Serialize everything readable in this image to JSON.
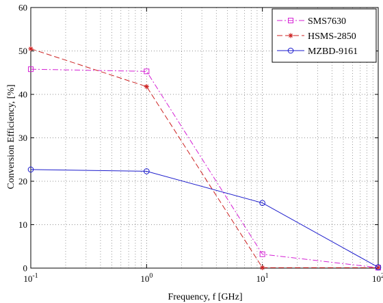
{
  "chart_data": {
    "type": "line",
    "title": "",
    "xlabel": "Frequency, f [GHz]",
    "ylabel": "Conversion Efficiency, [%]",
    "x_scale": "log",
    "xlim": [
      0.1,
      100
    ],
    "ylim": [
      0,
      60
    ],
    "x_ticks": [
      0.1,
      1,
      10,
      100
    ],
    "x_tick_labels": [
      {
        "base": "10",
        "exp": "-1"
      },
      {
        "base": "10",
        "exp": "0"
      },
      {
        "base": "10",
        "exp": "1"
      },
      {
        "base": "10",
        "exp": "2"
      }
    ],
    "y_ticks": [
      0,
      10,
      20,
      30,
      40,
      50,
      60
    ],
    "y_tick_labels": [
      "0",
      "10",
      "20",
      "30",
      "40",
      "50",
      "60"
    ],
    "grid": true,
    "legend_position": "top-right",
    "series": [
      {
        "name": "SMS7630",
        "color": "#d41fd4",
        "line_style": "dashdot",
        "marker": "square",
        "x": [
          0.1,
          1,
          10,
          100
        ],
        "y": [
          45.8,
          45.3,
          3.2,
          0.1
        ]
      },
      {
        "name": "HSMS-2850",
        "color": "#cc2020",
        "line_style": "dashed",
        "marker": "star",
        "x": [
          0.1,
          1,
          10,
          100
        ],
        "y": [
          50.5,
          41.8,
          0.1,
          0.1
        ]
      },
      {
        "name": "MZBD-9161",
        "color": "#1a1acc",
        "line_style": "solid",
        "marker": "circle",
        "x": [
          0.1,
          1,
          10,
          100
        ],
        "y": [
          22.7,
          22.3,
          15.0,
          0.2
        ]
      }
    ]
  }
}
